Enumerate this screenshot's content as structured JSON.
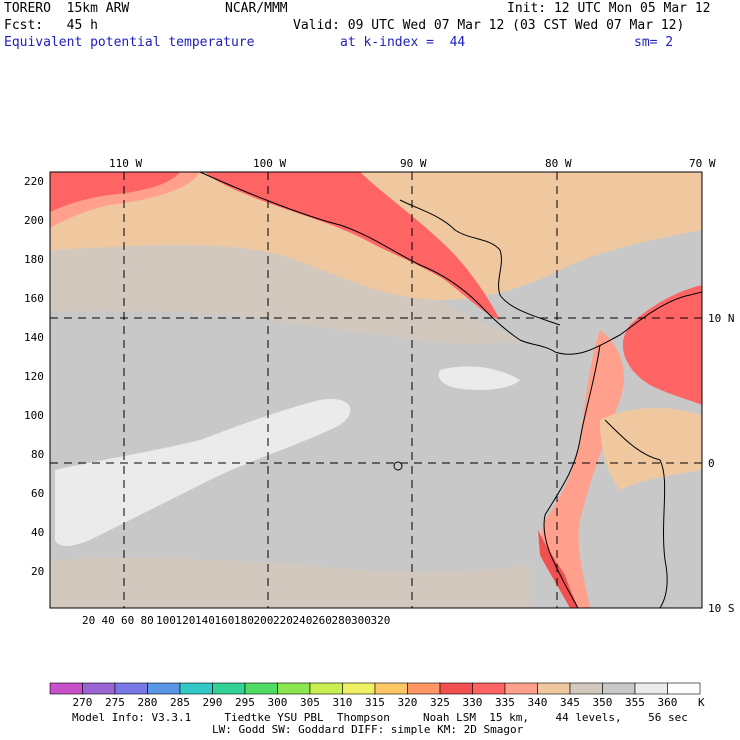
{
  "header": {
    "model": "TORERO  15km ARW",
    "center": "NCAR/MMM",
    "init": "Init: 12 UTC Mon 05 Mar 12",
    "fcst_label": "Fcst:   45 h",
    "valid": "Valid: 09 UTC Wed 07 Mar 12 (03 CST Wed 07 Mar 12)",
    "field": "Equivalent potential temperature",
    "level": "at k-index =  44",
    "smooth": "sm= 2"
  },
  "axes": {
    "x_ticks": [
      "20",
      "40",
      "60",
      "80",
      "100",
      "120",
      "140",
      "160",
      "180",
      "200",
      "220",
      "240",
      "260",
      "280",
      "300",
      "320"
    ],
    "y_ticks": [
      "20",
      "40",
      "60",
      "80",
      "100",
      "120",
      "140",
      "160",
      "180",
      "200",
      "220"
    ],
    "lon_labels": [
      "110 W",
      "100 W",
      "90 W",
      "80 W",
      "70 W"
    ],
    "lat_labels": [
      "10 N",
      "0",
      "10 S"
    ]
  },
  "colorbar": {
    "values": [
      "270",
      "275",
      "280",
      "285",
      "290",
      "295",
      "300",
      "305",
      "310",
      "315",
      "320",
      "325",
      "330",
      "335",
      "340",
      "345",
      "350",
      "355",
      "360"
    ],
    "unit": "K",
    "colors": [
      "#c850c8",
      "#9a64d2",
      "#7878e6",
      "#5a96e6",
      "#32c8c8",
      "#32d296",
      "#50dc64",
      "#8ce650",
      "#c8f050",
      "#f0f064",
      "#ffc864",
      "#ff9664",
      "#f05050",
      "#ff6464",
      "#ffa08c",
      "#f0c8a0",
      "#d2c8be",
      "#c8c8c8",
      "#ebebeb",
      "#ffffff"
    ]
  },
  "footer": {
    "line1": "Model Info: V3.3.1     Tiedtke YSU PBL  Thompson     Noah LSM  15 km,    44 levels,    56 sec",
    "line2": "LW: Godd SW: Goddard DIFF: simple KM: 2D Smagor"
  }
}
